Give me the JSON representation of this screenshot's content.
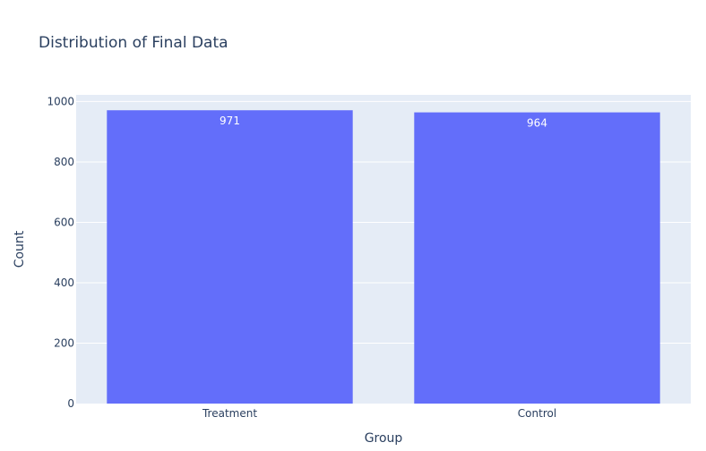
{
  "chart_data": {
    "type": "bar",
    "title": "Distribution of Final Data",
    "xlabel": "Group",
    "ylabel": "Count",
    "categories": [
      "Treatment",
      "Control"
    ],
    "values": [
      971,
      964
    ],
    "data_labels": [
      "971",
      "964"
    ],
    "ylim": [
      0,
      1022
    ],
    "yticks": [
      0,
      200,
      400,
      600,
      800,
      1000
    ],
    "ytick_labels": [
      "0",
      "200",
      "400",
      "600",
      "800",
      "1000"
    ],
    "grid": true,
    "legend": "none",
    "colors": {
      "bar": "#636efa",
      "plot_bg": "#e5ecf6",
      "grid": "#ffffff",
      "text": "#2a3f5f",
      "data_label": "#ffffff"
    }
  }
}
